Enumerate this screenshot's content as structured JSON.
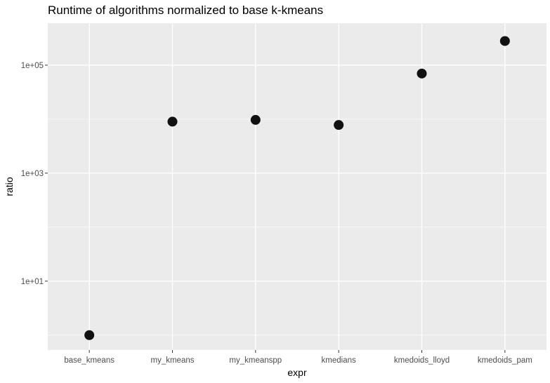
{
  "chart_data": {
    "type": "scatter",
    "title": "Runtime of algorithms normalized to base k-kmeans",
    "xlabel": "expr",
    "ylabel": "ratio",
    "categories": [
      "base_kmeans",
      "my_kmeans",
      "my_kmeanspp",
      "kmedians",
      "kmedoids_lloyd",
      "kmedoids_pam"
    ],
    "values": [
      1,
      9000,
      9700,
      7800,
      70000,
      280000
    ],
    "y_scale": "log10",
    "ylim": [
      0.53,
      600000
    ],
    "y_ticks": [
      {
        "value": 10,
        "label": "1e+01"
      },
      {
        "value": 1000,
        "label": "1e+03"
      },
      {
        "value": 100000,
        "label": "1e+05"
      }
    ],
    "panel_background": "#ebebeb",
    "grid_color": "#ffffff",
    "point_color": "#111111",
    "grid": true,
    "legend": "none"
  }
}
